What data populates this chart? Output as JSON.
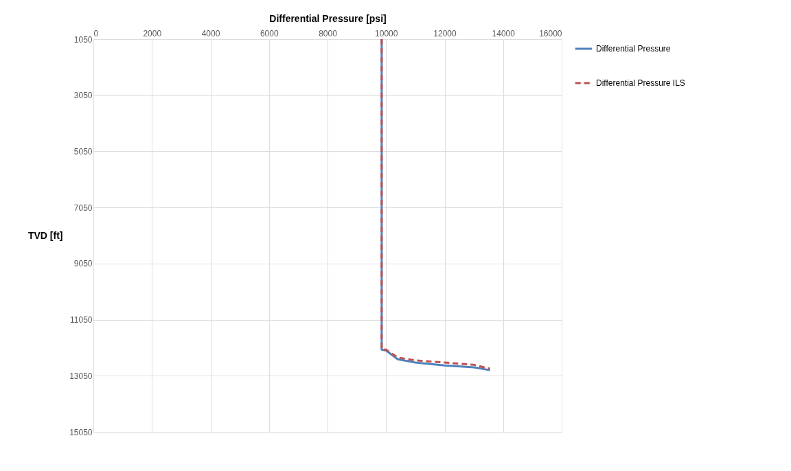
{
  "chart_data": {
    "type": "line",
    "xlabel": "Differential Pressure [psi]",
    "ylabel": "TVD [ft]",
    "xlim": [
      0,
      16000
    ],
    "xticks": [
      0,
      2000,
      4000,
      6000,
      8000,
      10000,
      12000,
      14000,
      16000
    ],
    "ylim": [
      15050,
      1050
    ],
    "yticks": [
      1050,
      3050,
      5050,
      7050,
      9050,
      11050,
      13050,
      15050
    ],
    "grid": true,
    "legend": "right",
    "marker": "none",
    "series": [
      {
        "name": "Differential Pressure",
        "color": "#4f81bd",
        "line_style": "solid",
        "x": [
          9850,
          9850,
          10000,
          10400,
          11000,
          12000,
          13000,
          13550
        ],
        "values": [
          1050,
          12120,
          12150,
          12460,
          12580,
          12680,
          12750,
          12850
        ]
      },
      {
        "name": "Differential Pressure ILS",
        "color": "#c0504d",
        "line_style": "dashed",
        "x": [
          9850,
          9850,
          10000,
          10400,
          11000,
          12000,
          13000,
          13550
        ],
        "values": [
          1050,
          12100,
          12120,
          12400,
          12500,
          12580,
          12660,
          12800
        ]
      }
    ]
  }
}
